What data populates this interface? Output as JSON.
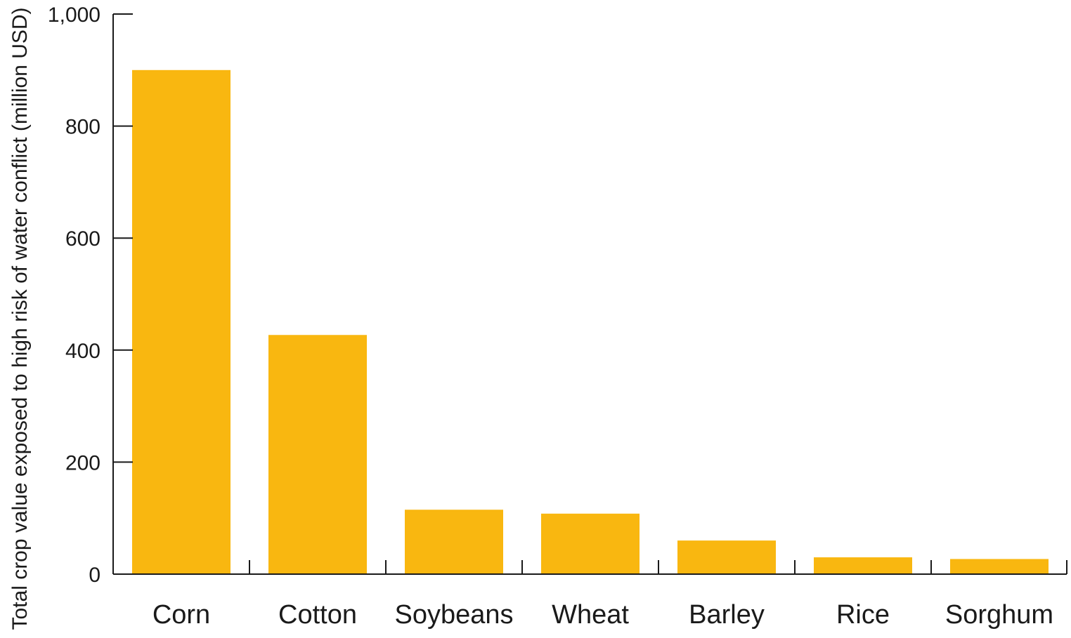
{
  "chart_data": {
    "type": "bar",
    "categories": [
      "Corn",
      "Cotton",
      "Soybeans",
      "Wheat",
      "Barley",
      "Rice",
      "Sorghum"
    ],
    "values": [
      900,
      427,
      115,
      108,
      60,
      30,
      27
    ],
    "ylabel": "Total crop value exposed to high risk of water conflict (million USD)",
    "xlabel": "",
    "ylim": [
      0,
      1000
    ],
    "yticks": [
      0,
      200,
      400,
      600,
      800,
      1000
    ],
    "ytick_labels": [
      "0",
      "200",
      "400",
      "600",
      "800",
      "1,000"
    ],
    "bar_color": "#F9B710",
    "grid": false,
    "legend": "none"
  }
}
